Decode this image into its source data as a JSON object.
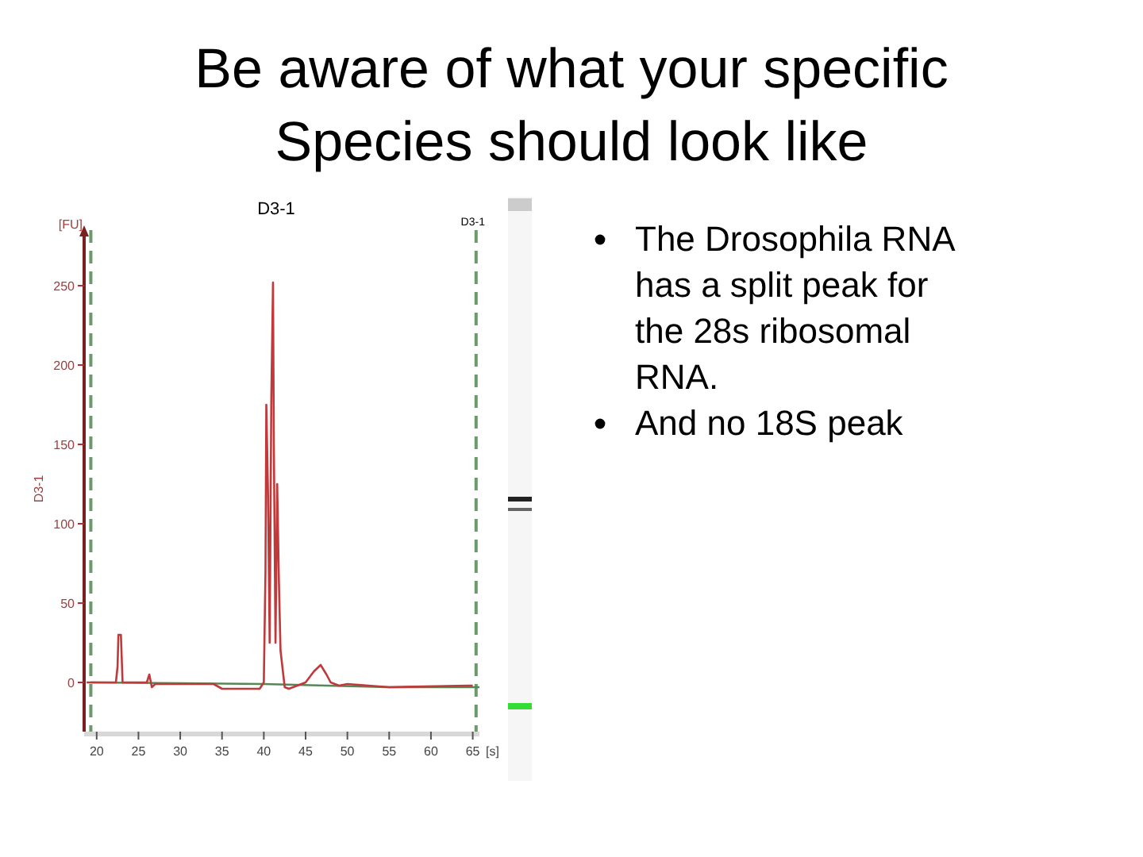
{
  "chart_data": {
    "type": "line",
    "title": "Be aware of what your specific Species should look like",
    "subtitle": "D3-1",
    "ylabel": "D3-1",
    "annotations": [
      "[FU]",
      "[s]",
      "The Drosophila RNA has a split peak for the 28s ribosomal RNA.",
      "And no 18S peak"
    ],
    "xlim": [
      18.5,
      65.8
    ],
    "ylim": [
      -31,
      285
    ],
    "xticks": [
      20,
      25,
      30,
      35,
      40,
      45,
      50,
      55,
      60,
      65
    ],
    "yticks": [
      0,
      50,
      100,
      150,
      200,
      250
    ],
    "grid": false,
    "ref_lines": [
      {
        "axis": "x",
        "value": 19.3,
        "label": null,
        "color": "#6a9a6a",
        "line_style": "dashed"
      },
      {
        "axis": "x",
        "value": 65.4,
        "label": "D3-1",
        "color": "#6a9a6a",
        "line_style": "dashed"
      }
    ],
    "series": [
      {
        "color": "#558855",
        "x": [
          19.3,
          40,
          55,
          65.8
        ],
        "values": [
          0,
          -1,
          -3,
          -3
        ]
      },
      {
        "color": "#c0393b",
        "x": [
          18.8,
          22.3,
          22.5,
          22.6,
          22.9,
          23.1,
          26,
          26.3,
          26.6,
          27,
          34,
          35,
          39.5,
          40.0,
          40.2,
          40.3,
          40.5,
          40.7,
          40.9,
          41.1,
          41.2,
          41.4,
          41.6,
          41.8,
          42,
          42.5,
          43,
          44,
          45,
          46,
          46.8,
          47.5,
          48,
          49,
          50,
          55,
          64.5,
          65
        ],
        "values": [
          0,
          0,
          10,
          30,
          30,
          0,
          0,
          5,
          -3,
          -1,
          -1,
          -4,
          -4,
          0,
          70,
          175,
          120,
          25,
          180,
          252,
          150,
          25,
          125,
          65,
          20,
          -3,
          -4,
          -2,
          0,
          7,
          11,
          5,
          0,
          -2,
          -1,
          -3,
          -2,
          -2
        ]
      }
    ]
  }
}
